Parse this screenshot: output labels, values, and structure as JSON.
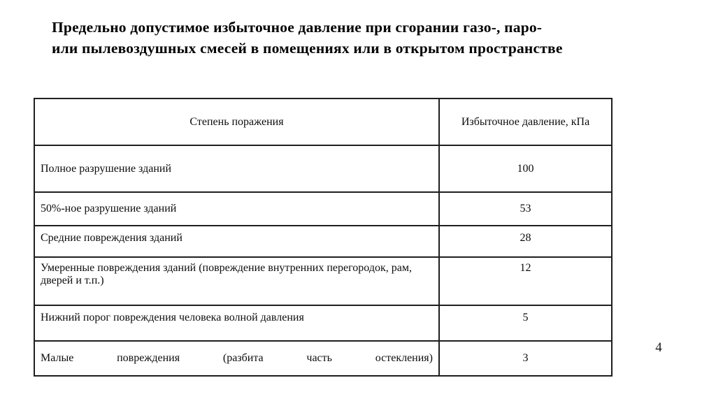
{
  "title": {
    "lines": [
      "Предельно допустимое избыточное давление при сгорании газо-, паро-",
      "или пылевоздушных смесей в помещениях или в открытом пространстве"
    ]
  },
  "table": {
    "headers": [
      "Степень поражения",
      "Избыточное давление, кПа"
    ],
    "rows": [
      {
        "label": "Полное разрушение зданий",
        "value": "100"
      },
      {
        "label": "50%-ное разрушение зданий",
        "value": "53"
      },
      {
        "label": "Средние повреждения зданий",
        "value": "28"
      },
      {
        "label": "Умеренные повреждения зданий (повреждение внутренних перегородок, рам, дверей и т.п.)",
        "value": "12"
      },
      {
        "label": "Нижний порог повреждения человека волной давления",
        "value": "5"
      },
      {
        "label": "Малые повреждения (разбита часть остекления)",
        "value": "3"
      }
    ]
  },
  "page": {
    "number": "4"
  }
}
